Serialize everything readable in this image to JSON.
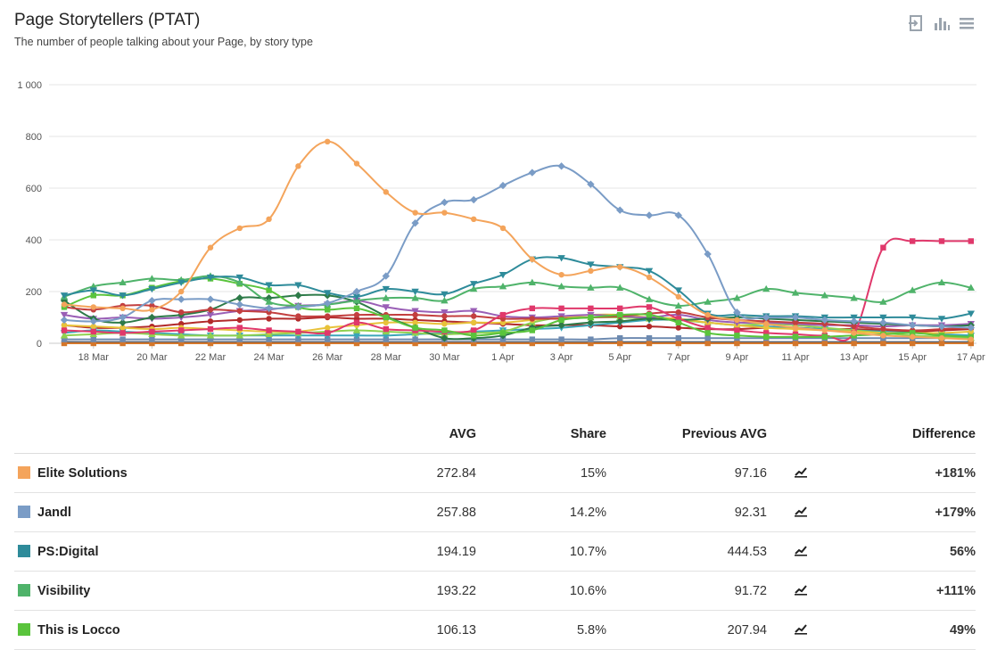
{
  "header": {
    "title": "Page Storytellers (PTAT)",
    "subtitle": "The number of people talking about your Page, by story type"
  },
  "toolbar": {
    "icons": [
      "export-icon",
      "bar-chart-icon",
      "menu-icon"
    ]
  },
  "table": {
    "columns": [
      "AVG",
      "Share",
      "Previous AVG",
      "Difference"
    ],
    "rows": [
      {
        "name": "Elite Solutions",
        "color": "#f4a45b",
        "avg": "272.84",
        "share": "15%",
        "prev": "97.16",
        "diff": "+181%",
        "trend": "up"
      },
      {
        "name": "Jandl",
        "color": "#7a9cc6",
        "avg": "257.88",
        "share": "14.2%",
        "prev": "92.31",
        "diff": "+179%",
        "trend": "up"
      },
      {
        "name": "PS:Digital",
        "color": "#2e8b9a",
        "avg": "194.19",
        "share": "10.7%",
        "prev": "444.53",
        "diff": "56%",
        "trend": "down"
      },
      {
        "name": "Visibility",
        "color": "#4fb36a",
        "avg": "193.22",
        "share": "10.6%",
        "prev": "91.72",
        "diff": "+111%",
        "trend": "up"
      },
      {
        "name": "This is Locco",
        "color": "#5ac43c",
        "avg": "106.13",
        "share": "5.8%",
        "prev": "207.94",
        "diff": "49%",
        "trend": "down"
      }
    ]
  },
  "chart_data": {
    "type": "line",
    "ylim": [
      0,
      1000
    ],
    "y_ticks": [
      "0",
      "200",
      "400",
      "600",
      "800",
      "1 000"
    ],
    "x_tick_labels": [
      "18 Mar",
      "20 Mar",
      "22 Mar",
      "24 Mar",
      "26 Mar",
      "28 Mar",
      "30 Mar",
      "1 Apr",
      "3 Apr",
      "5 Apr",
      "7 Apr",
      "9 Apr",
      "11 Apr",
      "13 Apr",
      "15 Apr",
      "17 Apr"
    ],
    "x": [
      "17 Mar",
      "18 Mar",
      "19 Mar",
      "20 Mar",
      "21 Mar",
      "22 Mar",
      "23 Mar",
      "24 Mar",
      "25 Mar",
      "26 Mar",
      "27 Mar",
      "28 Mar",
      "29 Mar",
      "30 Mar",
      "31 Mar",
      "1 Apr",
      "2 Apr",
      "3 Apr",
      "4 Apr",
      "5 Apr",
      "6 Apr",
      "7 Apr",
      "8 Apr",
      "9 Apr",
      "10 Apr",
      "11 Apr",
      "12 Apr",
      "13 Apr",
      "14 Apr",
      "15 Apr",
      "16 Apr",
      "17 Apr"
    ],
    "series": [
      {
        "name": "Elite Solutions",
        "color": "#f4a45b",
        "marker": "circle",
        "values": [
          150,
          140,
          135,
          130,
          200,
          370,
          445,
          480,
          685,
          780,
          695,
          585,
          505,
          505,
          480,
          445,
          325,
          265,
          280,
          295,
          255,
          180,
          110,
          90,
          75,
          60,
          50,
          40,
          30,
          25,
          20,
          15
        ]
      },
      {
        "name": "Jandl",
        "color": "#7a9cc6",
        "marker": "diamond",
        "values": [
          90,
          85,
          100,
          165,
          170,
          170,
          150,
          135,
          140,
          155,
          200,
          260,
          465,
          545,
          555,
          610,
          660,
          685,
          615,
          515,
          495,
          495,
          345,
          120,
          100,
          100,
          90,
          85,
          80,
          70,
          65,
          60
        ]
      },
      {
        "name": "PS:Digital",
        "color": "#2e8b9a",
        "marker": "triangle-down",
        "values": [
          185,
          205,
          185,
          210,
          235,
          255,
          255,
          225,
          225,
          195,
          180,
          210,
          200,
          190,
          230,
          265,
          325,
          330,
          305,
          295,
          280,
          205,
          115,
          110,
          105,
          105,
          100,
          100,
          100,
          100,
          95,
          115
        ]
      },
      {
        "name": "Visibility",
        "color": "#4fb36a",
        "marker": "triangle",
        "values": [
          180,
          220,
          235,
          250,
          245,
          260,
          235,
          160,
          145,
          150,
          165,
          175,
          175,
          165,
          210,
          220,
          235,
          220,
          215,
          215,
          170,
          145,
          160,
          175,
          210,
          195,
          185,
          175,
          160,
          205,
          235,
          215
        ]
      },
      {
        "name": "This is Locco",
        "color": "#5ac43c",
        "marker": "square",
        "values": [
          140,
          185,
          185,
          215,
          240,
          250,
          230,
          205,
          140,
          130,
          135,
          100,
          60,
          50,
          30,
          40,
          50,
          90,
          100,
          110,
          110,
          80,
          40,
          30,
          25,
          25,
          25,
          30,
          35,
          40,
          30,
          25
        ]
      },
      {
        "name": "",
        "color": "#e0386b",
        "marker": "square",
        "values": [
          50,
          45,
          40,
          45,
          50,
          55,
          60,
          50,
          45,
          40,
          80,
          55,
          50,
          45,
          50,
          110,
          135,
          135,
          135,
          135,
          140,
          95,
          60,
          50,
          40,
          35,
          30,
          40,
          370,
          395,
          395,
          395
        ]
      },
      {
        "name": "",
        "color": "#c33f3f",
        "marker": "circle",
        "values": [
          140,
          130,
          145,
          145,
          120,
          130,
          125,
          120,
          105,
          105,
          110,
          110,
          110,
          105,
          105,
          95,
          95,
          95,
          100,
          105,
          115,
          120,
          100,
          90,
          85,
          80,
          75,
          65,
          55,
          50,
          55,
          60
        ]
      },
      {
        "name": "",
        "color": "#2d7a48",
        "marker": "diamond",
        "values": [
          165,
          95,
          80,
          100,
          110,
          130,
          175,
          175,
          185,
          185,
          160,
          105,
          60,
          20,
          20,
          30,
          60,
          70,
          80,
          85,
          95,
          90,
          95,
          100,
          95,
          90,
          85,
          80,
          75,
          70,
          65,
          70
        ]
      },
      {
        "name": "",
        "color": "#9a5fb6",
        "marker": "triangle-down",
        "values": [
          110,
          95,
          100,
          95,
          100,
          110,
          125,
          130,
          145,
          150,
          165,
          140,
          125,
          120,
          125,
          105,
          100,
          105,
          110,
          105,
          100,
          110,
          90,
          80,
          80,
          75,
          70,
          70,
          65,
          70,
          70,
          75
        ]
      },
      {
        "name": "",
        "color": "#e8c23a",
        "marker": "circle",
        "values": [
          70,
          65,
          60,
          55,
          60,
          55,
          50,
          45,
          45,
          60,
          70,
          80,
          80,
          75,
          80,
          80,
          90,
          100,
          110,
          110,
          100,
          95,
          80,
          70,
          60,
          55,
          50,
          45,
          40,
          40,
          40,
          45
        ]
      },
      {
        "name": "",
        "color": "#8fd14f",
        "marker": "triangle",
        "values": [
          30,
          35,
          40,
          35,
          30,
          30,
          30,
          35,
          40,
          45,
          50,
          45,
          40,
          35,
          40,
          45,
          80,
          100,
          100,
          100,
          95,
          90,
          80,
          70,
          75,
          70,
          60,
          50,
          40,
          30,
          25,
          20
        ]
      },
      {
        "name": "",
        "color": "#3aa6b9",
        "marker": "triangle-down",
        "values": [
          40,
          50,
          45,
          40,
          35,
          30,
          30,
          30,
          30,
          30,
          30,
          30,
          35,
          40,
          45,
          50,
          55,
          60,
          70,
          80,
          90,
          90,
          80,
          70,
          65,
          60,
          55,
          50,
          45,
          40,
          35,
          30
        ]
      },
      {
        "name": "",
        "color": "#b22a2a",
        "marker": "circle",
        "values": [
          70,
          60,
          60,
          65,
          75,
          85,
          90,
          95,
          95,
          100,
          95,
          95,
          90,
          85,
          80,
          75,
          70,
          70,
          70,
          65,
          65,
          60,
          55,
          55,
          60,
          60,
          55,
          55,
          50,
          45,
          50,
          55
        ]
      },
      {
        "name": "",
        "color": "#6d8ab0",
        "marker": "square",
        "values": [
          15,
          15,
          15,
          15,
          15,
          15,
          15,
          15,
          15,
          15,
          15,
          15,
          15,
          15,
          15,
          15,
          15,
          15,
          15,
          20,
          20,
          20,
          20,
          20,
          20,
          20,
          20,
          20,
          20,
          20,
          20,
          20
        ]
      },
      {
        "name": "",
        "color": "#d4762a",
        "marker": "square",
        "values": [
          0,
          0,
          0,
          0,
          0,
          0,
          0,
          0,
          0,
          0,
          0,
          0,
          0,
          0,
          0,
          0,
          0,
          0,
          0,
          0,
          0,
          0,
          0,
          0,
          0,
          0,
          0,
          0,
          0,
          0,
          0,
          0
        ]
      },
      {
        "name": "",
        "color": "#555f6e",
        "marker": "circle",
        "values": [
          5,
          5,
          5,
          5,
          5,
          5,
          5,
          5,
          5,
          5,
          5,
          5,
          5,
          5,
          5,
          5,
          5,
          5,
          5,
          5,
          5,
          5,
          5,
          5,
          5,
          5,
          5,
          5,
          5,
          5,
          5,
          5
        ]
      }
    ]
  }
}
